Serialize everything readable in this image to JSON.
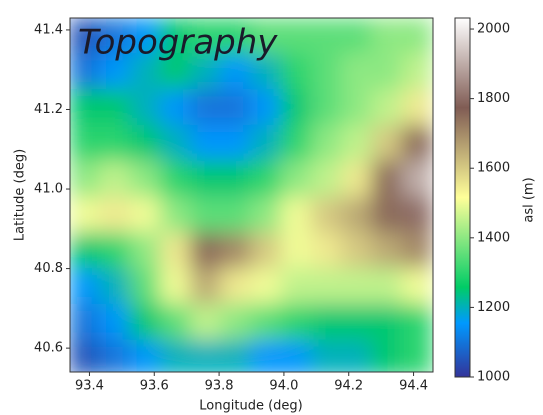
{
  "chart_data": {
    "type": "heatmap",
    "title": "Topography",
    "xlabel": "Longitude (deg)",
    "ylabel": "Latitude (deg)",
    "colorbar_label": "asl (m)",
    "x": [
      93.385,
      93.478,
      93.572,
      93.665,
      93.758,
      93.852,
      93.945,
      94.038,
      94.132,
      94.225,
      94.318,
      94.412
    ],
    "y": [
      41.385,
      41.295,
      41.205,
      41.115,
      41.025,
      40.935,
      40.845,
      40.755,
      40.665,
      40.575
    ],
    "z": [
      [
        1050,
        1100,
        1150,
        1250,
        1300,
        1300,
        1350,
        1350,
        1350,
        1350,
        1400,
        1400
      ],
      [
        1100,
        1150,
        1200,
        1250,
        1200,
        1150,
        1200,
        1300,
        1350,
        1400,
        1400,
        1450
      ],
      [
        1250,
        1250,
        1200,
        1150,
        1100,
        1100,
        1150,
        1250,
        1350,
        1400,
        1450,
        1550
      ],
      [
        1300,
        1300,
        1250,
        1200,
        1150,
        1150,
        1200,
        1300,
        1400,
        1450,
        1600,
        1750
      ],
      [
        1400,
        1450,
        1400,
        1300,
        1250,
        1250,
        1300,
        1400,
        1450,
        1550,
        1750,
        1900
      ],
      [
        1500,
        1550,
        1500,
        1400,
        1350,
        1350,
        1400,
        1500,
        1600,
        1650,
        1750,
        1800
      ],
      [
        1250,
        1300,
        1400,
        1550,
        1750,
        1700,
        1600,
        1500,
        1550,
        1600,
        1650,
        1700
      ],
      [
        1150,
        1200,
        1350,
        1500,
        1650,
        1550,
        1500,
        1450,
        1450,
        1450,
        1450,
        1500
      ],
      [
        1100,
        1150,
        1250,
        1350,
        1450,
        1400,
        1350,
        1300,
        1250,
        1250,
        1250,
        1300
      ],
      [
        1050,
        1100,
        1150,
        1200,
        1200,
        1200,
        1150,
        1150,
        1200,
        1200,
        1250,
        1300
      ]
    ],
    "xlim": [
      93.34,
      94.46
    ],
    "ylim": [
      40.54,
      41.43
    ],
    "clim": [
      1000,
      2030
    ],
    "xticks": [
      93.4,
      93.6,
      93.8,
      {
        "value": 94.0,
        "label": "94.0"
      },
      94.2,
      94.4
    ],
    "yticks": [
      40.6,
      40.8,
      {
        "value": 41.0,
        "label": "41.0"
      },
      41.2,
      41.4
    ],
    "cticks": [
      1000,
      1200,
      1400,
      1600,
      1800,
      2000
    ],
    "colormap": "terrain"
  }
}
